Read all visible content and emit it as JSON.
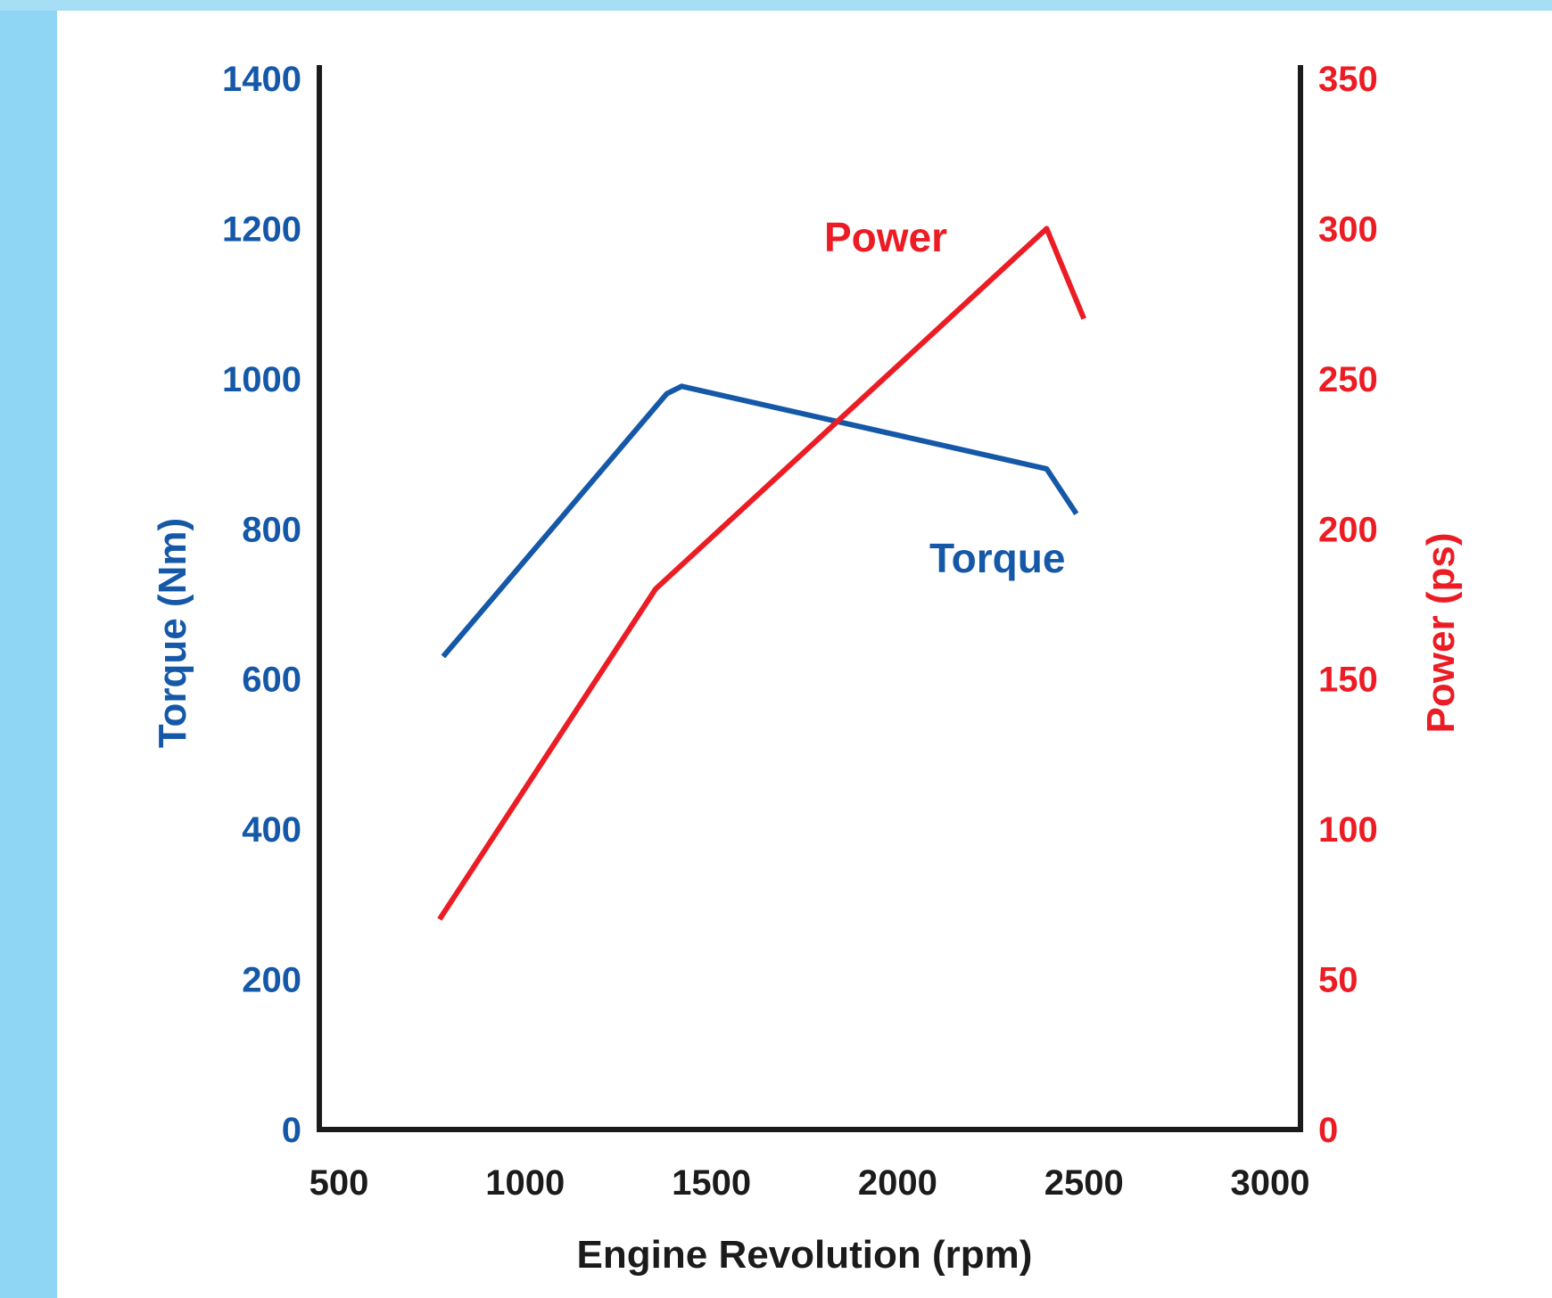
{
  "chart_data": {
    "type": "line",
    "title": "",
    "xlabel": "Engine Revolution (rpm)",
    "ylabel": "Torque (Nm)",
    "y2label": "Power (ps)",
    "xlim": [
      500,
      3000
    ],
    "ylim": [
      0,
      1400
    ],
    "y2lim": [
      0,
      350
    ],
    "x_ticks": [
      "500",
      "1000",
      "1500",
      "2000",
      "2500",
      "3000"
    ],
    "y_ticks": [
      "0",
      "200",
      "400",
      "600",
      "800",
      "1000",
      "1200",
      "1400"
    ],
    "y2_ticks": [
      "0",
      "50",
      "100",
      "150",
      "200",
      "250",
      "300",
      "350"
    ],
    "grid": false,
    "colors": {
      "torque": "#1558a8",
      "power": "#ec1c24",
      "axis": "#1b1b1b",
      "xlabel": "#1b1b1b"
    },
    "series": [
      {
        "name": "Torque",
        "axis": "left",
        "x": [
          780,
          1380,
          1420,
          2400,
          2480
        ],
        "y": [
          630,
          980,
          990,
          880,
          820
        ]
      },
      {
        "name": "Power",
        "axis": "right",
        "x": [
          770,
          1350,
          2400,
          2500
        ],
        "y": [
          70,
          180,
          300,
          270
        ]
      }
    ]
  }
}
